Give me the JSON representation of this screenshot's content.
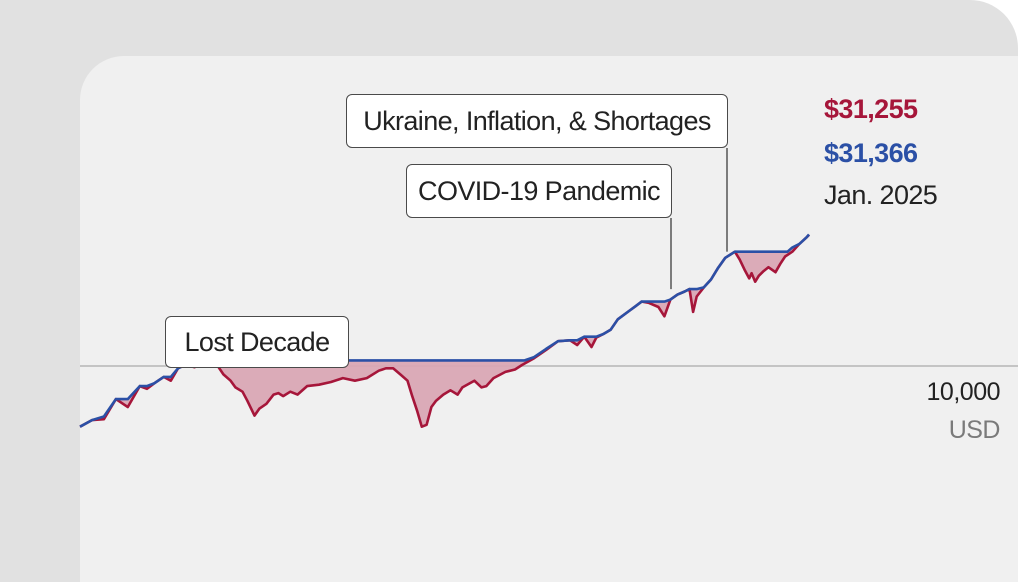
{
  "chart_data": {
    "type": "line",
    "scale": "log",
    "reference_line": {
      "value": "10,000",
      "unit": "USD"
    },
    "series": [
      {
        "key": "actual",
        "color": "#a6163a",
        "end_value_label": "$31,255",
        "x": [
          1994.5,
          1995.0,
          1995.5,
          1996.0,
          1996.5,
          1997.0,
          1997.3,
          1997.6,
          1998.0,
          1998.3,
          1998.6,
          1998.9,
          1999.3,
          1999.7,
          2000.0,
          2000.2,
          2000.5,
          2000.8,
          2001.0,
          2001.3,
          2001.5,
          2001.8,
          2002.0,
          2002.3,
          2002.6,
          2002.8,
          2003.0,
          2003.3,
          2003.6,
          2004.0,
          2004.5,
          2005.0,
          2005.5,
          2006.0,
          2006.5,
          2007.0,
          2007.3,
          2007.6,
          2007.9,
          2008.2,
          2008.4,
          2008.6,
          2008.8,
          2009.0,
          2009.2,
          2009.4,
          2009.7,
          2010.0,
          2010.3,
          2010.5,
          2010.8,
          2011.0,
          2011.3,
          2011.5,
          2011.8,
          2012.0,
          2012.3,
          2012.7,
          2013.0,
          2013.5,
          2014.0,
          2014.5,
          2015.0,
          2015.3,
          2015.6,
          2015.9,
          2016.1,
          2016.4,
          2016.7,
          2017.0,
          2017.5,
          2018.0,
          2018.3,
          2018.7,
          2018.95,
          2019.2,
          2019.5,
          2019.8,
          2020.0,
          2020.15,
          2020.3,
          2020.6,
          2020.9,
          2021.2,
          2021.5,
          2021.9,
          2022.1,
          2022.3,
          2022.5,
          2022.6,
          2022.75,
          2022.9,
          2023.1,
          2023.3,
          2023.6,
          2023.8,
          2024.0,
          2024.3,
          2024.6,
          2024.9,
          2025.0
        ],
        "y": [
          5900,
          6250,
          6300,
          7500,
          7000,
          8400,
          8200,
          8600,
          9100,
          8800,
          9800,
          10100,
          9900,
          10500,
          10500,
          10200,
          9300,
          8800,
          8300,
          8000,
          7400,
          6500,
          6900,
          7200,
          7800,
          7900,
          7700,
          8000,
          7800,
          8400,
          8500,
          8700,
          9000,
          8800,
          9000,
          9600,
          9800,
          9800,
          9300,
          8800,
          7700,
          6800,
          5900,
          6000,
          7000,
          7400,
          7800,
          8100,
          7800,
          8300,
          8600,
          8800,
          8300,
          8400,
          9000,
          9200,
          9500,
          9700,
          10100,
          10700,
          11500,
          12400,
          12500,
          12000,
          12900,
          11800,
          12800,
          13200,
          13700,
          15000,
          16200,
          17500,
          17300,
          16700,
          15400,
          17800,
          18600,
          19100,
          19500,
          16000,
          18300,
          19800,
          21200,
          23500,
          25600,
          27000,
          25200,
          23100,
          21400,
          22400,
          20800,
          21900,
          22800,
          23600,
          22600,
          24300,
          25900,
          27000,
          28900,
          30600,
          31255
        ]
      },
      {
        "key": "peak",
        "color": "#2b50a6",
        "end_value_label": "$31,366",
        "x": [
          1994.5,
          1995.0,
          1995.5,
          1996.0,
          1996.5,
          1997.0,
          1997.3,
          1997.6,
          1998.0,
          1998.3,
          1998.6,
          1998.9,
          1999.3,
          1999.7,
          2000.0,
          2013.1,
          2013.5,
          2014.0,
          2014.5,
          2015.0,
          2015.3,
          2015.6,
          2015.9,
          2016.1,
          2016.4,
          2016.7,
          2017.0,
          2017.5,
          2018.0,
          2018.3,
          2018.7,
          2018.95,
          2019.2,
          2019.5,
          2019.8,
          2020.0,
          2020.15,
          2020.3,
          2020.6,
          2020.9,
          2021.2,
          2021.5,
          2021.9,
          2024.1,
          2024.3,
          2024.6,
          2024.9,
          2025.0
        ],
        "y": [
          5900,
          6250,
          6450,
          7500,
          7500,
          8400,
          8400,
          8600,
          9100,
          9100,
          9800,
          10100,
          10100,
          10500,
          10500,
          10500,
          10800,
          11600,
          12400,
          12500,
          12500,
          12900,
          12900,
          12900,
          13200,
          13700,
          15000,
          16200,
          17500,
          17500,
          17500,
          17500,
          17800,
          18600,
          19100,
          19500,
          19500,
          19500,
          19800,
          21200,
          23500,
          25600,
          27000,
          27000,
          28000,
          28900,
          30600,
          31366
        ]
      }
    ],
    "annotations": [
      {
        "label": "Lost Decade",
        "x": 2000.0
      },
      {
        "label": "COVID-19 Pandemic",
        "x": 2020.0
      },
      {
        "label": "Ukraine, Inflation, & Shortages",
        "x": 2021.9
      }
    ],
    "end_date_label": "Jan. 2025"
  }
}
